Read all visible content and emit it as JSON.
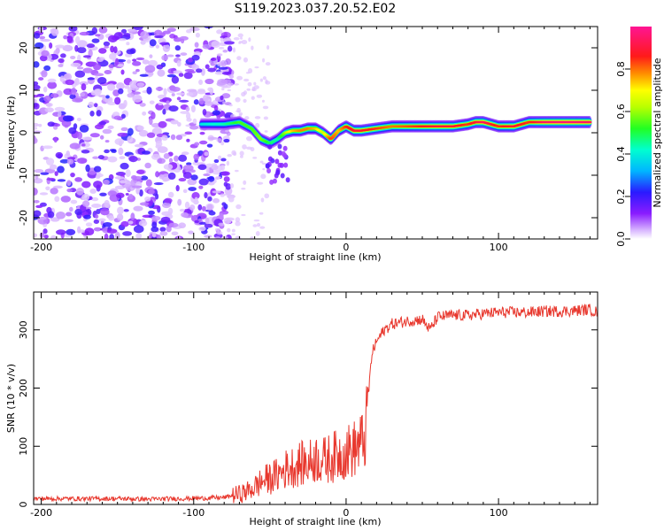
{
  "title": "S119.2023.037.20.52.E02",
  "chart_data": [
    {
      "type": "heatmap",
      "xlabel": "Height of straight line (km)",
      "ylabel": "Frequency (Hz)",
      "xlim": [
        -205,
        165
      ],
      "ylim": [
        -25,
        25
      ],
      "xticks": [
        -200,
        -100,
        0,
        100
      ],
      "yticks": [
        -20,
        -10,
        0,
        10,
        20
      ],
      "colorbar": {
        "label": "Normalized spectral amplitude",
        "range": [
          0,
          1
        ],
        "ticks": [
          0.0,
          0.2,
          0.4,
          0.6,
          0.8
        ],
        "colormap": "rainbow (white-violet-blue-cyan-green-yellow-red-magenta)"
      },
      "ridge": {
        "x": [
          -95,
          -80,
          -70,
          -62,
          -56,
          -50,
          -45,
          -40,
          -35,
          -30,
          -25,
          -20,
          -15,
          -10,
          -5,
          0,
          5,
          10,
          20,
          30,
          40,
          50,
          60,
          70,
          80,
          85,
          90,
          95,
          100,
          110,
          120,
          130,
          140,
          150,
          160
        ],
        "freq": [
          2,
          2,
          2.5,
          1,
          -1.5,
          -2.5,
          -1.5,
          0,
          0.5,
          0.5,
          1,
          1,
          0,
          -1.5,
          0.5,
          1.5,
          0.5,
          0.5,
          1,
          1.5,
          1.5,
          1.5,
          1.5,
          1.5,
          2,
          2.5,
          2.5,
          2,
          1.5,
          1.5,
          2.5,
          2.5,
          2.5,
          2.5,
          2.5
        ],
        "amplitude": [
          0.35,
          0.4,
          0.5,
          0.5,
          0.55,
          0.45,
          0.4,
          0.55,
          0.7,
          0.75,
          0.75,
          0.7,
          0.6,
          0.8,
          0.7,
          0.8,
          0.85,
          0.85,
          0.8,
          0.75,
          0.78,
          0.82,
          0.85,
          0.85,
          0.8,
          0.85,
          0.9,
          0.85,
          0.8,
          0.85,
          0.8,
          0.9,
          0.92,
          0.92,
          0.9
        ]
      }
    },
    {
      "type": "line",
      "xlabel": "Height of straight line (km)",
      "ylabel": "SNR (10 * v/v)",
      "xlim": [
        -205,
        165
      ],
      "ylim": [
        0,
        365
      ],
      "xticks": [
        -200,
        -100,
        0,
        100
      ],
      "yticks": [
        0,
        100,
        200,
        300
      ],
      "color": "#e8382e",
      "x": [
        -205,
        -190,
        -170,
        -150,
        -130,
        -110,
        -90,
        -80,
        -75,
        -70,
        -65,
        -60,
        -55,
        -50,
        -45,
        -40,
        -35,
        -30,
        -25,
        -20,
        -15,
        -10,
        -5,
        0,
        5,
        10,
        13,
        15,
        17,
        20,
        25,
        30,
        40,
        50,
        55,
        60,
        70,
        80,
        90,
        100,
        110,
        120,
        130,
        140,
        150,
        160,
        165
      ],
      "values": [
        10,
        10,
        10,
        10,
        9,
        10,
        11,
        12,
        15,
        18,
        22,
        30,
        40,
        45,
        50,
        60,
        65,
        70,
        70,
        80,
        75,
        80,
        85,
        90,
        95,
        105,
        120,
        200,
        260,
        280,
        300,
        310,
        315,
        318,
        300,
        322,
        325,
        325,
        328,
        330,
        330,
        330,
        332,
        332,
        333,
        335,
        330
      ]
    }
  ]
}
